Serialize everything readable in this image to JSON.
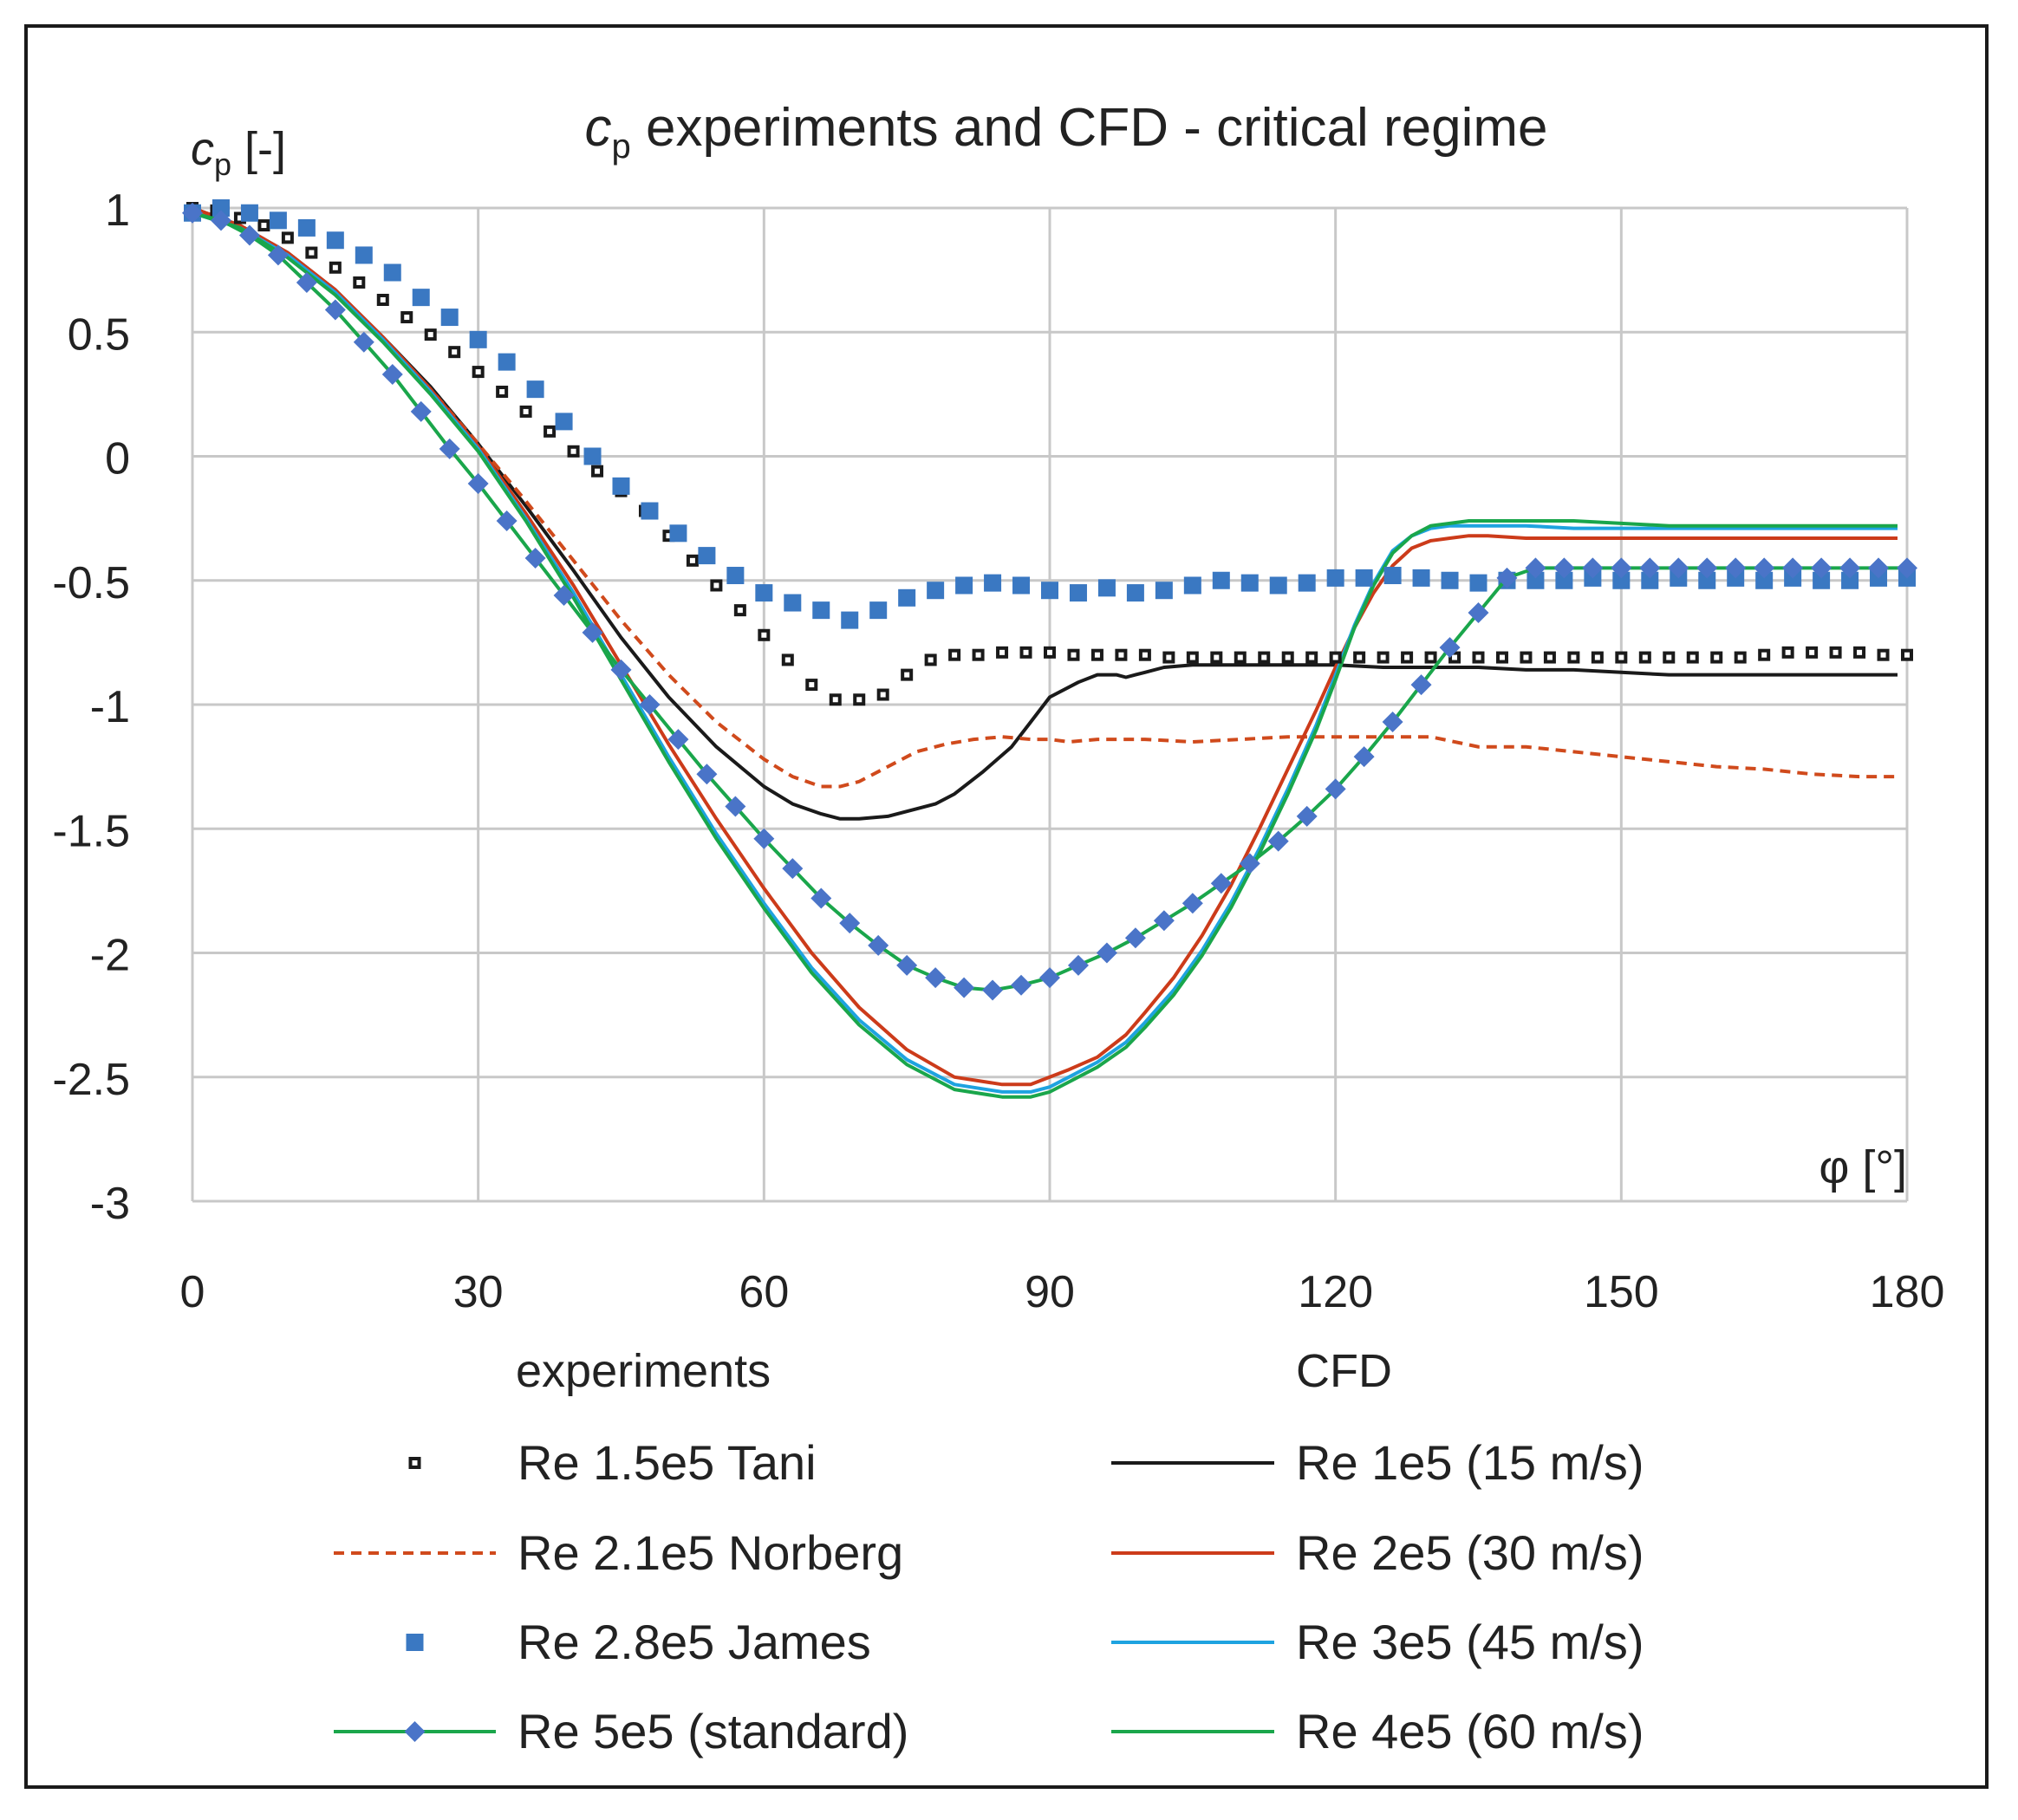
{
  "chart_data": {
    "type": "line",
    "title_sym": "c",
    "title_sub": "p",
    "title_rest": " experiments and CFD - critical regime",
    "ylabel_sym": "c",
    "ylabel_sub": "p",
    "ylabel_rest": " [-]",
    "xlabel": "φ [°]",
    "xlim": [
      0,
      180
    ],
    "ylim": [
      -3,
      1
    ],
    "xticks": [
      0,
      30,
      60,
      90,
      120,
      150,
      180
    ],
    "yticks": [
      1,
      0.5,
      0,
      -0.5,
      -1,
      -1.5,
      -2,
      -2.5,
      -3
    ],
    "ytick_labels": [
      "1",
      "0.5",
      "0",
      "-0.5",
      "-1",
      "-1.5",
      "-2",
      "-2.5",
      "-3"
    ],
    "grid": true,
    "legend_group_titles": [
      "experiments",
      "CFD"
    ],
    "series": [
      {
        "name": "Re 1.5e5 Tani",
        "group": "experiments",
        "style": "open-square",
        "color": "#1a1a1a",
        "x": [
          0,
          2.5,
          5,
          7.5,
          10,
          12.5,
          15,
          17.5,
          20,
          22.5,
          25,
          27.5,
          30,
          32.5,
          35,
          37.5,
          40,
          42.5,
          45,
          47.5,
          50,
          52.5,
          55,
          57.5,
          60,
          62.5,
          65,
          67.5,
          70,
          72.5,
          75,
          77.5,
          80,
          82.5,
          85,
          87.5,
          90,
          92.5,
          95,
          97.5,
          100,
          102.5,
          105,
          107.5,
          110,
          112.5,
          115,
          117.5,
          120,
          122.5,
          125,
          127.5,
          130,
          132.5,
          135,
          137.5,
          140,
          142.5,
          145,
          147.5,
          150,
          152.5,
          155,
          157.5,
          160,
          162.5,
          165,
          167.5,
          170,
          172.5,
          175,
          177.5,
          180
        ],
        "y": [
          1.0,
          0.99,
          0.96,
          0.93,
          0.88,
          0.82,
          0.76,
          0.7,
          0.63,
          0.56,
          0.49,
          0.42,
          0.34,
          0.26,
          0.18,
          0.1,
          0.02,
          -0.06,
          -0.14,
          -0.22,
          -0.32,
          -0.42,
          -0.52,
          -0.62,
          -0.72,
          -0.82,
          -0.92,
          -0.98,
          -0.98,
          -0.96,
          -0.88,
          -0.82,
          -0.8,
          -0.8,
          -0.79,
          -0.79,
          -0.79,
          -0.8,
          -0.8,
          -0.8,
          -0.8,
          -0.81,
          -0.81,
          -0.81,
          -0.81,
          -0.81,
          -0.81,
          -0.81,
          -0.81,
          -0.81,
          -0.81,
          -0.81,
          -0.81,
          -0.81,
          -0.81,
          -0.81,
          -0.81,
          -0.81,
          -0.81,
          -0.81,
          -0.81,
          -0.81,
          -0.81,
          -0.81,
          -0.81,
          -0.81,
          -0.8,
          -0.79,
          -0.79,
          -0.79,
          -0.79,
          -0.8,
          -0.8
        ]
      },
      {
        "name": "Re 2.1e5 Norberg",
        "group": "experiments",
        "style": "dashed",
        "color": "#d04a1c",
        "x": [
          0,
          5,
          10,
          15,
          20,
          25,
          30,
          35,
          40,
          45,
          50,
          55,
          60,
          63,
          66,
          68,
          70,
          73,
          76,
          79,
          82,
          85,
          88,
          90,
          92,
          95,
          100,
          105,
          110,
          115,
          120,
          125,
          130,
          135,
          140,
          145,
          150,
          155,
          160,
          165,
          170,
          175,
          179
        ],
        "y": [
          1.0,
          0.93,
          0.82,
          0.66,
          0.47,
          0.27,
          0.05,
          -0.18,
          -0.42,
          -0.66,
          -0.88,
          -1.07,
          -1.22,
          -1.29,
          -1.33,
          -1.33,
          -1.31,
          -1.25,
          -1.19,
          -1.16,
          -1.14,
          -1.13,
          -1.14,
          -1.14,
          -1.15,
          -1.14,
          -1.14,
          -1.15,
          -1.14,
          -1.13,
          -1.13,
          -1.13,
          -1.13,
          -1.17,
          -1.17,
          -1.19,
          -1.21,
          -1.23,
          -1.25,
          -1.26,
          -1.28,
          -1.29,
          -1.29
        ]
      },
      {
        "name": "Re 2.8e5 James",
        "group": "experiments",
        "style": "filled-square",
        "color": "#3a78c2",
        "x": [
          0,
          3,
          6,
          9,
          12,
          15,
          18,
          21,
          24,
          27,
          30,
          33,
          36,
          39,
          42,
          45,
          48,
          51,
          54,
          57,
          60,
          63,
          66,
          69,
          72,
          75,
          78,
          81,
          84,
          87,
          90,
          93,
          96,
          99,
          102,
          105,
          108,
          111,
          114,
          117,
          120,
          123,
          126,
          129,
          132,
          135,
          138,
          141,
          144,
          147,
          150,
          153,
          156,
          159,
          162,
          165,
          168,
          171,
          174,
          177,
          180
        ],
        "y": [
          0.98,
          1.0,
          0.98,
          0.95,
          0.92,
          0.87,
          0.81,
          0.74,
          0.64,
          0.56,
          0.47,
          0.38,
          0.27,
          0.14,
          0.0,
          -0.12,
          -0.22,
          -0.31,
          -0.4,
          -0.48,
          -0.55,
          -0.59,
          -0.62,
          -0.66,
          -0.62,
          -0.57,
          -0.54,
          -0.52,
          -0.51,
          -0.52,
          -0.54,
          -0.55,
          -0.53,
          -0.55,
          -0.54,
          -0.52,
          -0.5,
          -0.51,
          -0.52,
          -0.51,
          -0.49,
          -0.49,
          -0.48,
          -0.49,
          -0.5,
          -0.51,
          -0.5,
          -0.5,
          -0.5,
          -0.49,
          -0.5,
          -0.5,
          -0.49,
          -0.5,
          -0.49,
          -0.5,
          -0.49,
          -0.5,
          -0.5,
          -0.49,
          -0.49
        ]
      },
      {
        "name": "Re 5e5 (standard)",
        "group": "experiments",
        "style": "line-diamond",
        "color": "#1aa64b",
        "marker_color": "#4a74c8",
        "x": [
          0,
          3,
          6,
          9,
          12,
          15,
          18,
          21,
          24,
          27,
          30,
          33,
          36,
          39,
          42,
          45,
          48,
          51,
          54,
          57,
          60,
          63,
          66,
          69,
          72,
          75,
          78,
          81,
          84,
          87,
          90,
          93,
          96,
          99,
          102,
          105,
          108,
          111,
          114,
          117,
          120,
          123,
          126,
          129,
          132,
          135,
          138,
          141,
          144,
          147,
          150,
          153,
          156,
          159,
          162,
          165,
          168,
          171,
          174,
          177,
          180
        ],
        "y": [
          0.98,
          0.95,
          0.89,
          0.81,
          0.7,
          0.59,
          0.46,
          0.33,
          0.18,
          0.03,
          -0.11,
          -0.26,
          -0.41,
          -0.56,
          -0.71,
          -0.86,
          -1.0,
          -1.14,
          -1.28,
          -1.41,
          -1.54,
          -1.66,
          -1.78,
          -1.88,
          -1.97,
          -2.05,
          -2.1,
          -2.14,
          -2.15,
          -2.13,
          -2.1,
          -2.05,
          -2.0,
          -1.94,
          -1.87,
          -1.8,
          -1.72,
          -1.64,
          -1.55,
          -1.45,
          -1.34,
          -1.21,
          -1.07,
          -0.92,
          -0.77,
          -0.63,
          -0.49,
          -0.45,
          -0.45,
          -0.45,
          -0.45,
          -0.45,
          -0.45,
          -0.45,
          -0.45,
          -0.45,
          -0.45,
          -0.45,
          -0.45,
          -0.45,
          -0.45
        ]
      },
      {
        "name": "Re 1e5 (15 m/s)",
        "group": "CFD",
        "style": "line",
        "color": "#1a1a1a",
        "x": [
          0,
          5,
          10,
          15,
          20,
          25,
          30,
          35,
          40,
          45,
          50,
          55,
          60,
          63,
          66,
          68,
          70,
          73,
          76,
          78,
          80,
          83,
          86,
          88,
          90,
          93,
          95,
          97,
          98,
          99,
          100,
          102,
          105,
          110,
          115,
          120,
          125,
          130,
          135,
          140,
          145,
          150,
          155,
          160,
          165,
          170,
          175,
          179
        ],
        "y": [
          1.0,
          0.93,
          0.82,
          0.67,
          0.48,
          0.28,
          0.05,
          -0.2,
          -0.46,
          -0.73,
          -0.97,
          -1.17,
          -1.33,
          -1.4,
          -1.44,
          -1.46,
          -1.46,
          -1.45,
          -1.42,
          -1.4,
          -1.36,
          -1.27,
          -1.17,
          -1.07,
          -0.97,
          -0.91,
          -0.88,
          -0.88,
          -0.89,
          -0.88,
          -0.87,
          -0.85,
          -0.84,
          -0.84,
          -0.84,
          -0.84,
          -0.85,
          -0.85,
          -0.85,
          -0.86,
          -0.86,
          -0.87,
          -0.88,
          -0.88,
          -0.88,
          -0.88,
          -0.88,
          -0.88
        ]
      },
      {
        "name": "Re 2e5 (30 m/s)",
        "group": "CFD",
        "style": "line",
        "color": "#cc3b1a",
        "x": [
          0,
          5,
          10,
          15,
          20,
          25,
          30,
          35,
          40,
          45,
          50,
          55,
          60,
          65,
          70,
          75,
          80,
          85,
          88,
          90,
          92,
          95,
          98,
          100,
          103,
          106,
          109,
          112,
          115,
          118,
          120,
          122,
          124,
          126,
          128,
          130,
          132,
          134,
          136,
          140,
          145,
          150,
          155,
          160,
          165,
          170,
          175,
          179
        ],
        "y": [
          1.0,
          0.93,
          0.82,
          0.67,
          0.48,
          0.27,
          0.04,
          -0.23,
          -0.52,
          -0.84,
          -1.16,
          -1.46,
          -1.74,
          -2.0,
          -2.22,
          -2.39,
          -2.5,
          -2.53,
          -2.53,
          -2.5,
          -2.47,
          -2.42,
          -2.33,
          -2.24,
          -2.1,
          -1.93,
          -1.73,
          -1.5,
          -1.26,
          -1.02,
          -0.85,
          -0.69,
          -0.55,
          -0.44,
          -0.37,
          -0.34,
          -0.33,
          -0.32,
          -0.32,
          -0.33,
          -0.33,
          -0.33,
          -0.33,
          -0.33,
          -0.33,
          -0.33,
          -0.33,
          -0.33
        ]
      },
      {
        "name": "Re 3e5 (45 m/s)",
        "group": "CFD",
        "style": "line",
        "color": "#1ea3e0",
        "x": [
          0,
          5,
          10,
          15,
          20,
          25,
          30,
          35,
          40,
          45,
          50,
          55,
          60,
          65,
          70,
          75,
          80,
          85,
          88,
          90,
          92,
          95,
          98,
          100,
          103,
          106,
          109,
          112,
          115,
          118,
          120,
          122,
          124,
          126,
          128,
          130,
          132,
          134,
          136,
          140,
          145,
          150,
          155,
          160,
          165,
          170,
          175,
          179
        ],
        "y": [
          0.98,
          0.92,
          0.81,
          0.66,
          0.47,
          0.26,
          0.03,
          -0.25,
          -0.55,
          -0.88,
          -1.21,
          -1.52,
          -1.8,
          -2.06,
          -2.27,
          -2.43,
          -2.53,
          -2.56,
          -2.56,
          -2.54,
          -2.5,
          -2.44,
          -2.36,
          -2.28,
          -2.15,
          -1.99,
          -1.8,
          -1.58,
          -1.34,
          -1.08,
          -0.88,
          -0.68,
          -0.51,
          -0.38,
          -0.32,
          -0.29,
          -0.28,
          -0.28,
          -0.28,
          -0.28,
          -0.29,
          -0.29,
          -0.29,
          -0.29,
          -0.29,
          -0.29,
          -0.29,
          -0.29
        ]
      },
      {
        "name": "Re 4e5 (60 m/s)",
        "group": "CFD",
        "style": "line",
        "color": "#1aa64b",
        "x": [
          0,
          5,
          10,
          15,
          20,
          25,
          30,
          35,
          40,
          45,
          50,
          55,
          60,
          65,
          70,
          75,
          80,
          85,
          88,
          90,
          92,
          95,
          98,
          100,
          103,
          106,
          109,
          112,
          115,
          118,
          120,
          122,
          124,
          126,
          128,
          130,
          132,
          134,
          136,
          140,
          145,
          150,
          155,
          160,
          165,
          170,
          175,
          179
        ],
        "y": [
          0.98,
          0.92,
          0.8,
          0.65,
          0.46,
          0.25,
          0.02,
          -0.26,
          -0.57,
          -0.9,
          -1.23,
          -1.54,
          -1.82,
          -2.08,
          -2.29,
          -2.45,
          -2.55,
          -2.58,
          -2.58,
          -2.56,
          -2.52,
          -2.46,
          -2.38,
          -2.3,
          -2.17,
          -2.01,
          -1.82,
          -1.6,
          -1.36,
          -1.1,
          -0.9,
          -0.69,
          -0.52,
          -0.39,
          -0.32,
          -0.28,
          -0.27,
          -0.26,
          -0.26,
          -0.26,
          -0.26,
          -0.27,
          -0.28,
          -0.28,
          -0.28,
          -0.28,
          -0.28,
          -0.28
        ]
      }
    ]
  }
}
